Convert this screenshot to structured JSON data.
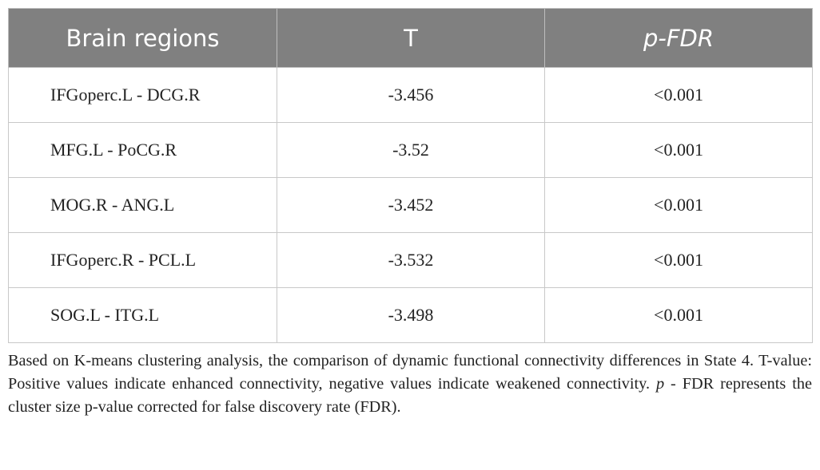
{
  "table": {
    "header": [
      "Brain regions",
      "T",
      "p-FDR"
    ],
    "rows": [
      [
        "IFGoperc.L - DCG.R",
        "-3.456",
        "<0.001"
      ],
      [
        "MFG.L - PoCG.R",
        "-3.52",
        "<0.001"
      ],
      [
        "MOG.R - ANG.L",
        "-3.452",
        "<0.001"
      ],
      [
        "IFGoperc.R - PCL.L",
        "-3.532",
        "<0.001"
      ],
      [
        "SOG.L - ITG.L",
        "-3.498",
        "<0.001"
      ]
    ]
  },
  "caption": [
    "Based on K-means clustering analysis, the comparison of dynamic functional connectivity differences in State 4. T-value: Positive values indicate enhanced connectivity, negative values indicate weakened connectivity. ",
    "p",
    " - FDR represents the cluster size p-value corrected for false discovery rate (FDR)."
  ]
}
